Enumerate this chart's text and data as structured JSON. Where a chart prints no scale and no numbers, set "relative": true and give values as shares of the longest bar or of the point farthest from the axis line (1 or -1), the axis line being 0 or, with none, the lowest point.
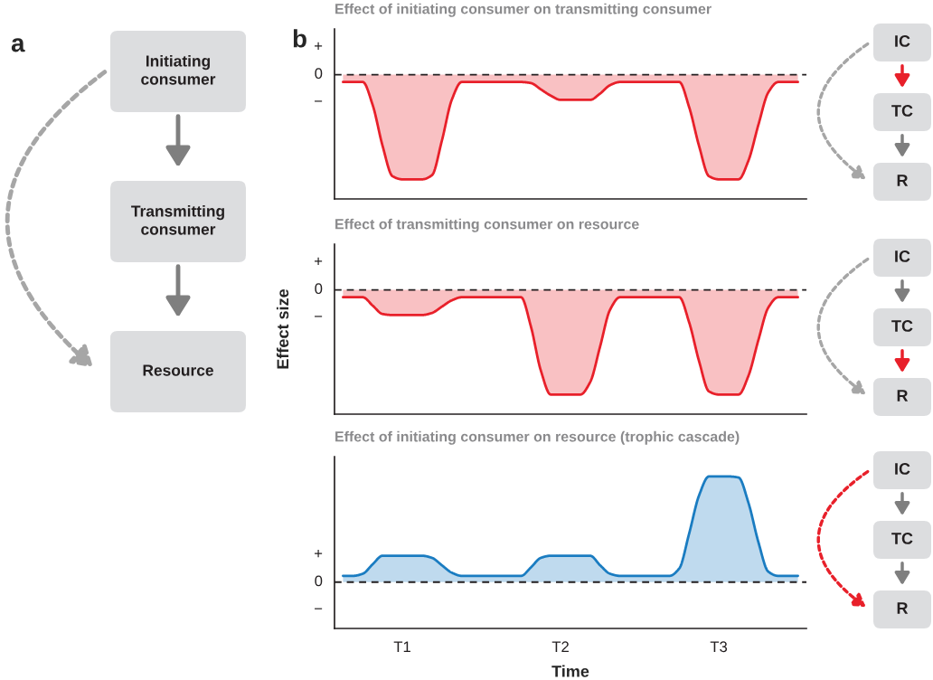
{
  "chart_data": [
    {
      "type": "other",
      "annotations": [
        "a",
        "Initiating\nconsumer",
        "Transmitting\nconsumer",
        "Resource"
      ],
      "colors": [
        "#7f7f7f",
        "#7f7f7f",
        "#a6a6a6"
      ]
    },
    {
      "type": "area",
      "title": "Effect of initiating consumer on transmitting consumer",
      "annotations": [
        "b",
        "+",
        "0",
        "−"
      ],
      "categories": [
        null,
        null,
        null,
        null,
        null,
        null,
        null,
        null,
        null,
        null,
        null,
        null,
        null,
        null,
        null,
        null,
        null,
        null,
        null,
        null,
        null,
        null,
        null,
        null,
        null,
        null,
        null,
        null,
        null,
        null,
        null,
        null,
        null,
        null,
        null,
        null,
        null,
        null,
        null,
        null,
        null,
        null,
        null,
        null,
        null,
        null,
        null
      ],
      "series": [
        {
          "color": "#e8202a",
          "values": [
            -0.07,
            -0.07,
            -0.07,
            -0.29,
            -0.68,
            -0.97,
            -1,
            -1,
            -1,
            -0.96,
            -0.63,
            -0.24,
            -0.07,
            -0.07,
            -0.07,
            -0.07,
            -0.07,
            -0.07,
            -0.07,
            -0.08,
            -0.14,
            -0.2,
            -0.24,
            -0.24,
            -0.24,
            -0.24,
            -0.18,
            -0.1,
            -0.07,
            -0.07,
            -0.07,
            -0.07,
            -0.07,
            -0.07,
            -0.07,
            -0.31,
            -0.68,
            -0.97,
            -1,
            -1,
            -1,
            -0.82,
            -0.48,
            -0.17,
            -0.07,
            -0.07,
            -0.07
          ]
        }
      ],
      "relative": true,
      "ref_lines": [
        {
          "axis": "y",
          "value": 0,
          "color": "#231f20",
          "line_style": "dashed"
        }
      ]
    },
    {
      "type": "other",
      "annotations": [
        "IC",
        "TC",
        "R"
      ],
      "colors": [
        "#e8202a",
        "#7f7f7f",
        "#a6a6a6"
      ]
    },
    {
      "type": "area",
      "title": "Effect of transmitting consumer on resource",
      "ylabel": "Effect size",
      "annotations": [
        "+",
        "0",
        "−"
      ],
      "categories": [
        null,
        null,
        null,
        null,
        null,
        null,
        null,
        null,
        null,
        null,
        null,
        null,
        null,
        null,
        null,
        null,
        null,
        null,
        null,
        null,
        null,
        null,
        null,
        null,
        null,
        null,
        null,
        null,
        null,
        null,
        null,
        null,
        null,
        null,
        null,
        null,
        null,
        null,
        null,
        null,
        null,
        null,
        null,
        null,
        null,
        null,
        null
      ],
      "series": [
        {
          "color": "#e8202a",
          "values": [
            -0.07,
            -0.07,
            -0.07,
            -0.15,
            -0.23,
            -0.24,
            -0.24,
            -0.24,
            -0.24,
            -0.22,
            -0.16,
            -0.1,
            -0.07,
            -0.07,
            -0.07,
            -0.07,
            -0.07,
            -0.07,
            -0.07,
            -0.35,
            -0.77,
            -1,
            -1,
            -1,
            -1,
            -0.88,
            -0.54,
            -0.19,
            -0.07,
            -0.07,
            -0.07,
            -0.07,
            -0.07,
            -0.07,
            -0.07,
            -0.31,
            -0.68,
            -0.97,
            -1,
            -1,
            -1,
            -0.82,
            -0.48,
            -0.17,
            -0.07,
            -0.07,
            -0.07
          ]
        }
      ],
      "relative": true,
      "ref_lines": [
        {
          "axis": "y",
          "value": 0,
          "color": "#231f20",
          "line_style": "dashed"
        }
      ]
    },
    {
      "type": "other",
      "annotations": [
        "IC",
        "TC",
        "R"
      ],
      "colors": [
        "#7f7f7f",
        "#e8202a",
        "#a6a6a6"
      ]
    },
    {
      "type": "area",
      "title": "Effect of initiating consumer on resource (trophic cascade)",
      "xlabel": "Time",
      "annotations": [
        "+",
        "0",
        "−"
      ],
      "categories": [
        null,
        null,
        null,
        null,
        null,
        null,
        "T1",
        null,
        null,
        null,
        null,
        null,
        null,
        null,
        null,
        null,
        null,
        null,
        null,
        null,
        null,
        null,
        "T2",
        null,
        null,
        null,
        null,
        null,
        null,
        null,
        null,
        null,
        null,
        null,
        null,
        null,
        null,
        null,
        "T3",
        null,
        null,
        null,
        null,
        null,
        null,
        null,
        null
      ],
      "series": [
        {
          "color": "#1a7cc1",
          "values": [
            0.06,
            0.06,
            0.08,
            0.17,
            0.25,
            0.25,
            0.25,
            0.25,
            0.25,
            0.23,
            0.16,
            0.09,
            0.06,
            0.06,
            0.06,
            0.06,
            0.06,
            0.06,
            0.06,
            0.14,
            0.23,
            0.25,
            0.25,
            0.25,
            0.25,
            0.25,
            0.16,
            0.08,
            0.06,
            0.06,
            0.06,
            0.06,
            0.06,
            0.06,
            0.13,
            0.46,
            0.82,
            1,
            1,
            1,
            0.99,
            0.75,
            0.38,
            0.1,
            0.06,
            0.06,
            0.06
          ]
        }
      ],
      "relative": true,
      "ref_lines": [
        {
          "axis": "y",
          "value": 0,
          "color": "#231f20",
          "line_style": "dashed"
        }
      ]
    },
    {
      "type": "other",
      "annotations": [
        "IC",
        "TC",
        "R"
      ],
      "colors": [
        "#7f7f7f",
        "#7f7f7f",
        "#e8202a"
      ]
    }
  ]
}
